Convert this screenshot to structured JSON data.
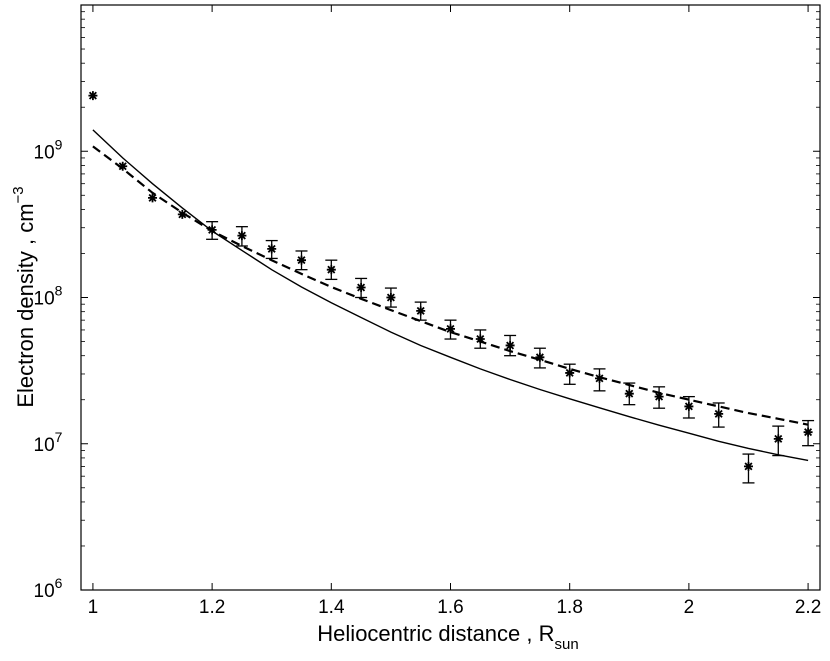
{
  "chart_data": {
    "type": "scatter",
    "xlabel": "Heliocentric distance , R",
    "xlabel_sub": "sun",
    "ylabel": "Electron density , cm",
    "ylabel_sup": "−3",
    "xlim": [
      0.98,
      2.22
    ],
    "ylim": [
      1000000,
      10000000000
    ],
    "yscale": "log",
    "grid": false,
    "x_ticks": [
      1,
      1.2,
      1.4,
      1.6,
      1.8,
      2,
      2.2
    ],
    "x_tick_labels": [
      "1",
      "1.2",
      "1.4",
      "1.6",
      "1.8",
      "2",
      "2.2"
    ],
    "y_ticks": [
      1000000,
      10000000,
      100000000,
      1000000000
    ],
    "y_tick_labels": [
      {
        "base": "10",
        "exp": "6"
      },
      {
        "base": "10",
        "exp": "7"
      },
      {
        "base": "10",
        "exp": "8"
      },
      {
        "base": "10",
        "exp": "9"
      }
    ],
    "series": [
      {
        "style": "asterisk-errorbar",
        "x": [
          1.0,
          1.05,
          1.1,
          1.15,
          1.2,
          1.25,
          1.3,
          1.35,
          1.4,
          1.45,
          1.5,
          1.55,
          1.6,
          1.65,
          1.7,
          1.75,
          1.8,
          1.85,
          1.9,
          1.95,
          2.0,
          2.05,
          2.1,
          2.15,
          2.2
        ],
        "y": [
          2400000000,
          790000000,
          480000000,
          370000000,
          290000000,
          265000000,
          215000000,
          180000000,
          155000000,
          117000000,
          100000000,
          81000000,
          61000000,
          52000000,
          47000000,
          39000000,
          30500000,
          28000000,
          22000000,
          21000000,
          18000000,
          16000000,
          7000000,
          10800000,
          12000000
        ],
        "err_low": [
          null,
          null,
          null,
          null,
          250000000,
          225000000,
          185000000,
          155000000,
          133000000,
          100000000,
          86000000,
          70000000,
          52000000,
          45000000,
          40000000,
          33000000,
          25500000,
          23000000,
          18500000,
          17500000,
          15000000,
          13000000,
          5400000,
          8300000,
          9700000
        ],
        "err_high": [
          null,
          null,
          null,
          null,
          330000000,
          305000000,
          245000000,
          208000000,
          180000000,
          135000000,
          116000000,
          93000000,
          70000000,
          60000000,
          55000000,
          45000000,
          35000000,
          32500000,
          26000000,
          24500000,
          21000000,
          19000000,
          8500000,
          13200000,
          14400000
        ]
      },
      {
        "style": "solid-line",
        "x": [
          1.0,
          1.05,
          1.1,
          1.15,
          1.2,
          1.25,
          1.3,
          1.35,
          1.4,
          1.45,
          1.5,
          1.55,
          1.6,
          1.65,
          1.7,
          1.75,
          1.8,
          1.85,
          1.9,
          1.95,
          2.0,
          2.05,
          2.1,
          2.15,
          2.2
        ],
        "y": [
          1400000000,
          900000000,
          600000000,
          410000000,
          285000000,
          210000000,
          155000000,
          118000000,
          92000000,
          73000000,
          58000000,
          47000000,
          39000000,
          32500000,
          27500000,
          23500000,
          20300000,
          17600000,
          15300000,
          13400000,
          11800000,
          10400000,
          9300000,
          8400000,
          7700000
        ]
      },
      {
        "style": "dashed-line",
        "x": [
          1.0,
          1.05,
          1.1,
          1.15,
          1.2,
          1.25,
          1.3,
          1.35,
          1.4,
          1.45,
          1.5,
          1.55,
          1.6,
          1.65,
          1.7,
          1.75,
          1.8,
          1.85,
          1.9,
          1.95,
          2.0,
          2.05,
          2.1,
          2.15,
          2.2
        ],
        "y": [
          1080000000,
          760000000,
          520000000,
          380000000,
          285000000,
          225000000,
          180000000,
          145000000,
          118000000,
          98000000,
          82000000,
          69000000,
          58000000,
          50000000,
          43000000,
          37500000,
          32500000,
          28500000,
          25200000,
          22300000,
          20000000,
          18000000,
          16200000,
          14800000,
          13500000
        ]
      }
    ]
  }
}
